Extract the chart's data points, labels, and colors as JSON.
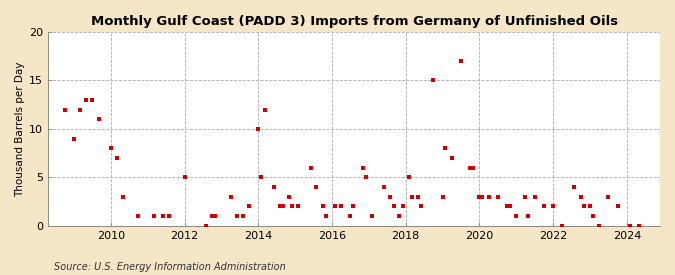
{
  "title": "Monthly Gulf Coast (PADD 3) Imports from Germany of Unfinished Oils",
  "ylabel": "Thousand Barrels per Day",
  "source": "Source: U.S. Energy Information Administration",
  "background_color": "#f5e6c8",
  "plot_bg_color": "#ffffff",
  "marker_color": "#cc0000",
  "marker_size": 3.5,
  "ylim": [
    0,
    20
  ],
  "yticks": [
    0,
    5,
    10,
    15,
    20
  ],
  "xlim_start": 2008.3,
  "xlim_end": 2024.9,
  "xticks": [
    2010,
    2012,
    2014,
    2016,
    2018,
    2020,
    2022,
    2024
  ],
  "data_points": [
    [
      2008.75,
      12
    ],
    [
      2009.0,
      9
    ],
    [
      2009.17,
      12
    ],
    [
      2009.33,
      13
    ],
    [
      2009.5,
      13
    ],
    [
      2009.67,
      11
    ],
    [
      2010.0,
      8
    ],
    [
      2010.17,
      7
    ],
    [
      2010.33,
      3
    ],
    [
      2010.75,
      1
    ],
    [
      2011.17,
      1
    ],
    [
      2011.42,
      1
    ],
    [
      2011.58,
      1
    ],
    [
      2012.0,
      5
    ],
    [
      2012.58,
      0
    ],
    [
      2012.75,
      1
    ],
    [
      2012.83,
      1
    ],
    [
      2013.25,
      3
    ],
    [
      2013.42,
      1
    ],
    [
      2013.58,
      1
    ],
    [
      2013.75,
      2
    ],
    [
      2014.0,
      10
    ],
    [
      2014.08,
      5
    ],
    [
      2014.17,
      12
    ],
    [
      2014.42,
      4
    ],
    [
      2014.58,
      2
    ],
    [
      2014.67,
      2
    ],
    [
      2014.83,
      3
    ],
    [
      2014.92,
      2
    ],
    [
      2015.08,
      2
    ],
    [
      2015.42,
      6
    ],
    [
      2015.58,
      4
    ],
    [
      2015.75,
      2
    ],
    [
      2015.83,
      1
    ],
    [
      2016.08,
      2
    ],
    [
      2016.25,
      2
    ],
    [
      2016.5,
      1
    ],
    [
      2016.58,
      2
    ],
    [
      2016.83,
      6
    ],
    [
      2016.92,
      5
    ],
    [
      2017.08,
      1
    ],
    [
      2017.42,
      4
    ],
    [
      2017.58,
      3
    ],
    [
      2017.67,
      2
    ],
    [
      2017.83,
      1
    ],
    [
      2017.92,
      2
    ],
    [
      2018.08,
      5
    ],
    [
      2018.17,
      3
    ],
    [
      2018.33,
      3
    ],
    [
      2018.42,
      2
    ],
    [
      2018.75,
      15
    ],
    [
      2019.0,
      3
    ],
    [
      2019.08,
      8
    ],
    [
      2019.25,
      7
    ],
    [
      2019.5,
      17
    ],
    [
      2019.75,
      6
    ],
    [
      2019.83,
      6
    ],
    [
      2020.0,
      3
    ],
    [
      2020.08,
      3
    ],
    [
      2020.25,
      3
    ],
    [
      2020.5,
      3
    ],
    [
      2020.75,
      2
    ],
    [
      2020.83,
      2
    ],
    [
      2021.0,
      1
    ],
    [
      2021.25,
      3
    ],
    [
      2021.33,
      1
    ],
    [
      2021.5,
      3
    ],
    [
      2021.75,
      2
    ],
    [
      2022.0,
      2
    ],
    [
      2022.25,
      0
    ],
    [
      2022.58,
      4
    ],
    [
      2022.75,
      3
    ],
    [
      2022.83,
      2
    ],
    [
      2023.0,
      2
    ],
    [
      2023.08,
      1
    ],
    [
      2023.25,
      0
    ],
    [
      2023.5,
      3
    ],
    [
      2023.75,
      2
    ],
    [
      2024.08,
      0
    ],
    [
      2024.33,
      0
    ]
  ]
}
